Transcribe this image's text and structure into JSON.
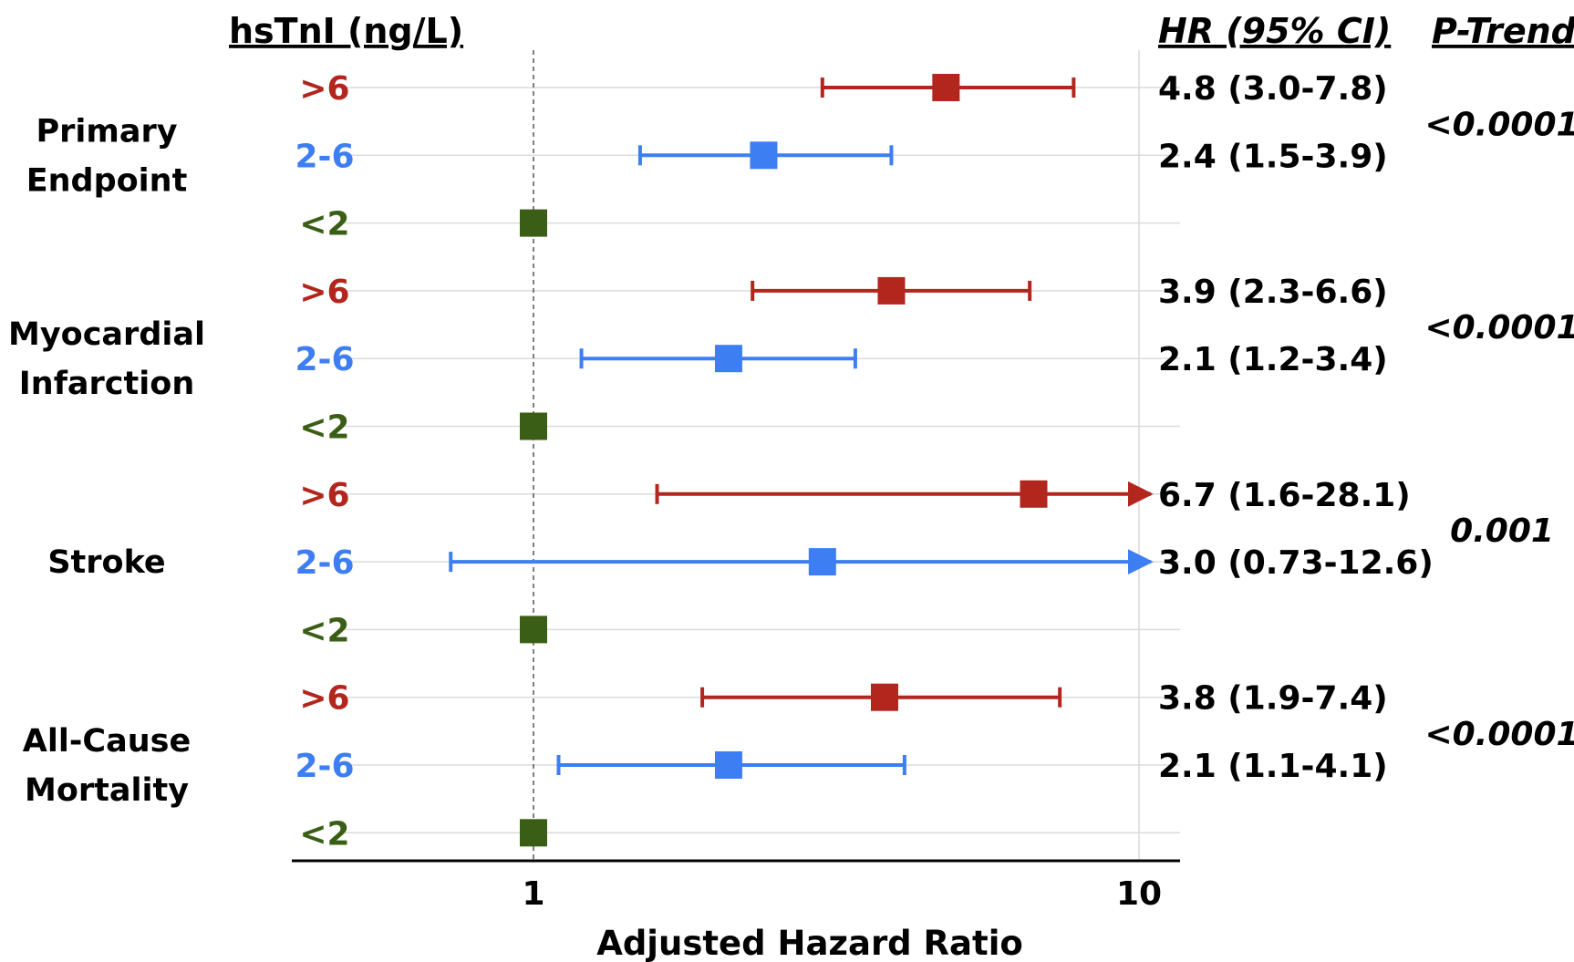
{
  "headers": {
    "level": "hsTnI (ng/L)",
    "hr": "HR (95% CI)",
    "ptrend": "P-Trend"
  },
  "colors": {
    ">6": "#b2261d",
    "2-6": "#3d7ef2",
    "<2": "#3b5e16"
  },
  "chart_data": {
    "type": "forest",
    "xscale": "log",
    "xlim": [
      0.55,
      12
    ],
    "xticks": [
      1,
      10
    ],
    "xlabel": "Adjusted Hazard Ratio",
    "reference_line": 1,
    "groups": [
      {
        "name": [
          "Primary",
          "Endpoint"
        ],
        "p_trend": "<0.0001",
        "rows": [
          {
            "level": ">6",
            "hr": 4.8,
            "lo": 3.0,
            "hi": 7.8,
            "label": "4.8 (3.0-7.8)",
            "arrow": false
          },
          {
            "level": "2-6",
            "hr": 2.4,
            "lo": 1.5,
            "hi": 3.9,
            "label": "2.4 (1.5-3.9)",
            "arrow": false
          },
          {
            "level": "<2",
            "hr": 1.0,
            "label": ""
          }
        ]
      },
      {
        "name": [
          "Myocardial",
          "Infarction"
        ],
        "p_trend": "<0.0001",
        "rows": [
          {
            "level": ">6",
            "hr": 3.9,
            "lo": 2.3,
            "hi": 6.6,
            "label": "3.9 (2.3-6.6)",
            "arrow": false
          },
          {
            "level": "2-6",
            "hr": 2.1,
            "lo": 1.2,
            "hi": 3.4,
            "label": "2.1 (1.2-3.4)",
            "arrow": false
          },
          {
            "level": "<2",
            "hr": 1.0,
            "label": ""
          }
        ]
      },
      {
        "name": [
          "Stroke"
        ],
        "p_trend": "0.001",
        "rows": [
          {
            "level": ">6",
            "hr": 6.7,
            "lo": 1.6,
            "hi": 28.1,
            "label": "6.7 (1.6-28.1)",
            "arrow": true
          },
          {
            "level": "2-6",
            "hr": 3.0,
            "lo": 0.73,
            "hi": 12.6,
            "label": "3.0 (0.73-12.6)",
            "arrow": true
          },
          {
            "level": "<2",
            "hr": 1.0,
            "label": ""
          }
        ]
      },
      {
        "name": [
          "All-Cause",
          "Mortality"
        ],
        "p_trend": "<0.0001",
        "rows": [
          {
            "level": ">6",
            "hr": 3.8,
            "lo": 1.9,
            "hi": 7.4,
            "label": "3.8 (1.9-7.4)",
            "arrow": false
          },
          {
            "level": "2-6",
            "hr": 2.1,
            "lo": 1.1,
            "hi": 4.1,
            "label": "2.1 (1.1-4.1)",
            "arrow": false
          },
          {
            "level": "<2",
            "hr": 1.0,
            "label": ""
          }
        ]
      }
    ]
  }
}
